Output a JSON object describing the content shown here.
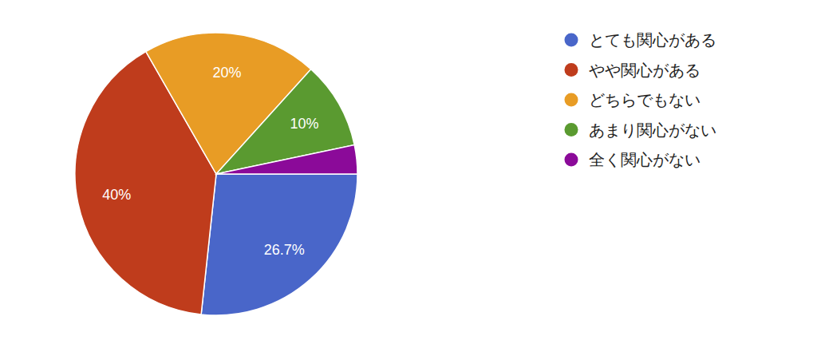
{
  "chart_data": {
    "type": "pie",
    "categories": [
      "とても関心がある",
      "やや関心がある",
      "どちらでもない",
      "あまり関心がない",
      "全く関心がない"
    ],
    "values": [
      26.7,
      40,
      20,
      10,
      3.3
    ],
    "value_labels": [
      "26.7%",
      "40%",
      "20%",
      "10%",
      null
    ],
    "colors": [
      "#4966c9",
      "#bf3c1c",
      "#e89c25",
      "#5a9a30",
      "#8b0a99"
    ],
    "data_labels": true,
    "legend": "right"
  }
}
